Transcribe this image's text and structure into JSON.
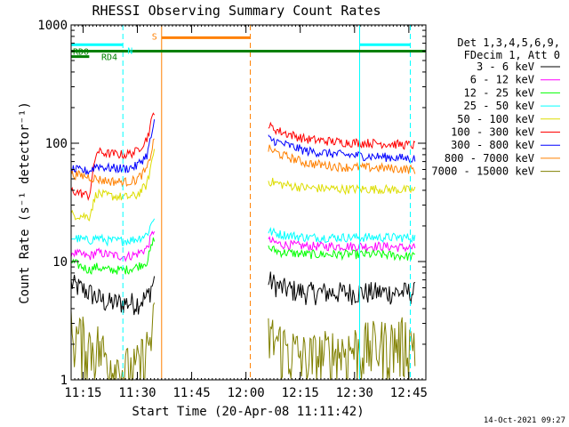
{
  "chart_data": {
    "type": "line",
    "title": "RHESSI Observing Summary Count Rates",
    "xlabel": "Start Time (20-Apr-08 11:11:42)",
    "ylabel": "Count Rate (s⁻¹ detector⁻¹)",
    "yscale": "log",
    "ylim": [
      1,
      1000
    ],
    "xlim_minutes_from_start": [
      0,
      98
    ],
    "x_ticks": [
      {
        "label": "11:15",
        "value": 3.3
      },
      {
        "label": "11:30",
        "value": 18.3
      },
      {
        "label": "11:45",
        "value": 33.3
      },
      {
        "label": "12:00",
        "value": 48.3
      },
      {
        "label": "12:15",
        "value": 63.3
      },
      {
        "label": "12:30",
        "value": 78.3
      },
      {
        "label": "12:45",
        "value": 93.3
      }
    ],
    "y_ticks": [
      {
        "label": "1",
        "value": 1
      },
      {
        "label": "10",
        "value": 10
      },
      {
        "label": "100",
        "value": 100
      },
      {
        "label": "1000",
        "value": 1000
      }
    ],
    "legend": {
      "header": [
        "Det 1,3,4,5,6,9,",
        "FDecim 1, Att 0"
      ],
      "placement": "right"
    },
    "data_gap_minutes": [
      23.5,
      53.5
    ],
    "series": [
      {
        "name": "3 - 6 keV",
        "color": "#000000",
        "before": [
          [
            0,
            6.5
          ],
          [
            5,
            5.5
          ],
          [
            7,
            5
          ],
          [
            10,
            4.5
          ],
          [
            15,
            4.5
          ],
          [
            18,
            4.5
          ],
          [
            21,
            5
          ],
          [
            23,
            7
          ]
        ],
        "after": [
          [
            54.5,
            7
          ],
          [
            58,
            6
          ],
          [
            65,
            5.5
          ],
          [
            75,
            5.5
          ],
          [
            85,
            5.5
          ],
          [
            95,
            5.5
          ]
        ]
      },
      {
        "name": "6 - 12 keV",
        "color": "#ff00ff",
        "before": [
          [
            0,
            12
          ],
          [
            5,
            11
          ],
          [
            7,
            12
          ],
          [
            10,
            11.5
          ],
          [
            15,
            11
          ],
          [
            18,
            11.5
          ],
          [
            21,
            13
          ],
          [
            23,
            19
          ]
        ],
        "after": [
          [
            54.5,
            15
          ],
          [
            58,
            14
          ],
          [
            65,
            13.5
          ],
          [
            75,
            13.5
          ],
          [
            85,
            13.5
          ],
          [
            95,
            13
          ]
        ]
      },
      {
        "name": "12 - 25 keV",
        "color": "#00ff00",
        "before": [
          [
            0,
            10
          ],
          [
            5,
            8.5
          ],
          [
            7,
            9
          ],
          [
            10,
            8.5
          ],
          [
            15,
            8.5
          ],
          [
            18,
            9
          ],
          [
            21,
            10
          ],
          [
            23,
            16
          ]
        ],
        "after": [
          [
            54.5,
            13
          ],
          [
            58,
            12
          ],
          [
            65,
            11.5
          ],
          [
            75,
            11.5
          ],
          [
            85,
            11.5
          ],
          [
            95,
            11
          ]
        ]
      },
      {
        "name": "25 - 50 keV",
        "color": "#00ffff",
        "before": [
          [
            0,
            16
          ],
          [
            5,
            15
          ],
          [
            7,
            16
          ],
          [
            10,
            15
          ],
          [
            15,
            15
          ],
          [
            18,
            15.5
          ],
          [
            21,
            17
          ],
          [
            23,
            24
          ]
        ],
        "after": [
          [
            54.5,
            18
          ],
          [
            58,
            17
          ],
          [
            65,
            16
          ],
          [
            75,
            16
          ],
          [
            85,
            16
          ],
          [
            95,
            16
          ]
        ]
      },
      {
        "name": "50 - 100 keV",
        "color": "#dddd00",
        "before": [
          [
            0,
            25
          ],
          [
            5,
            24
          ],
          [
            7,
            38
          ],
          [
            10,
            36
          ],
          [
            15,
            35
          ],
          [
            18,
            36
          ],
          [
            21,
            45
          ],
          [
            23,
            90
          ]
        ],
        "after": [
          [
            54.5,
            48
          ],
          [
            58,
            45
          ],
          [
            65,
            42
          ],
          [
            75,
            41
          ],
          [
            85,
            41
          ],
          [
            95,
            40
          ]
        ]
      },
      {
        "name": "100 - 300 keV",
        "color": "#ff0000",
        "before": [
          [
            0,
            40
          ],
          [
            5,
            36
          ],
          [
            7,
            85
          ],
          [
            10,
            82
          ],
          [
            15,
            80
          ],
          [
            18,
            85
          ],
          [
            21,
            110
          ],
          [
            23,
            190
          ]
        ],
        "after": [
          [
            54.5,
            140
          ],
          [
            58,
            125
          ],
          [
            65,
            108
          ],
          [
            75,
            102
          ],
          [
            85,
            100
          ],
          [
            95,
            96
          ]
        ]
      },
      {
        "name": "300 - 800 keV",
        "color": "#0000ff",
        "before": [
          [
            0,
            60
          ],
          [
            5,
            58
          ],
          [
            7,
            65
          ],
          [
            10,
            62
          ],
          [
            15,
            61
          ],
          [
            18,
            64
          ],
          [
            21,
            80
          ],
          [
            23,
            150
          ]
        ],
        "after": [
          [
            54.5,
            110
          ],
          [
            58,
            100
          ],
          [
            65,
            86
          ],
          [
            75,
            80
          ],
          [
            85,
            77
          ],
          [
            95,
            74
          ]
        ]
      },
      {
        "name": "800 - 7000 keV",
        "color": "#ff8000",
        "before": [
          [
            0,
            55
          ],
          [
            5,
            52
          ],
          [
            7,
            50
          ],
          [
            10,
            48
          ],
          [
            15,
            47
          ],
          [
            18,
            49
          ],
          [
            21,
            60
          ],
          [
            23,
            110
          ]
        ],
        "after": [
          [
            54.5,
            90
          ],
          [
            58,
            80
          ],
          [
            65,
            68
          ],
          [
            75,
            63
          ],
          [
            85,
            62
          ],
          [
            95,
            60
          ]
        ]
      },
      {
        "name": "7000 - 15000 keV",
        "color": "#808000",
        "before": [
          [
            0,
            2.5
          ],
          [
            5,
            2
          ],
          [
            7,
            2
          ],
          [
            10,
            1.5
          ],
          [
            15,
            1.2
          ],
          [
            18,
            1.2
          ],
          [
            21,
            1.8
          ],
          [
            23,
            3
          ]
        ],
        "after": [
          [
            54.5,
            2.4
          ],
          [
            58,
            2
          ],
          [
            65,
            1.5
          ],
          [
            75,
            1.8
          ],
          [
            85,
            2
          ],
          [
            95,
            2.2
          ]
        ]
      }
    ],
    "flags": [
      {
        "label": "RDO",
        "color": "#008000",
        "y": 600,
        "segments": [
          [
            0,
            98
          ]
        ]
      },
      {
        "label": "RD4",
        "color": "#008000",
        "y": 540,
        "segments": [
          [
            0,
            5
          ]
        ]
      },
      {
        "label": "S",
        "color": "#ff8000",
        "y": 780,
        "segments": [
          [
            25,
            49.5
          ]
        ]
      },
      {
        "label": "N",
        "color": "#00ffff",
        "y": 680,
        "segments": [
          [
            0,
            14.3
          ],
          [
            79.7,
            93.7
          ]
        ]
      }
    ],
    "vlines": [
      {
        "x": 14.3,
        "color": "#00ffff",
        "style": "dashed"
      },
      {
        "x": 25,
        "color": "#ff8000",
        "style": "solid"
      },
      {
        "x": 49.5,
        "color": "#ff8000",
        "style": "dashed"
      },
      {
        "x": 79.7,
        "color": "#00ffff",
        "style": "solid"
      },
      {
        "x": 93.7,
        "color": "#00ffff",
        "style": "dashed"
      }
    ]
  },
  "footer": {
    "date": "14-Oct-2021 09:27"
  }
}
